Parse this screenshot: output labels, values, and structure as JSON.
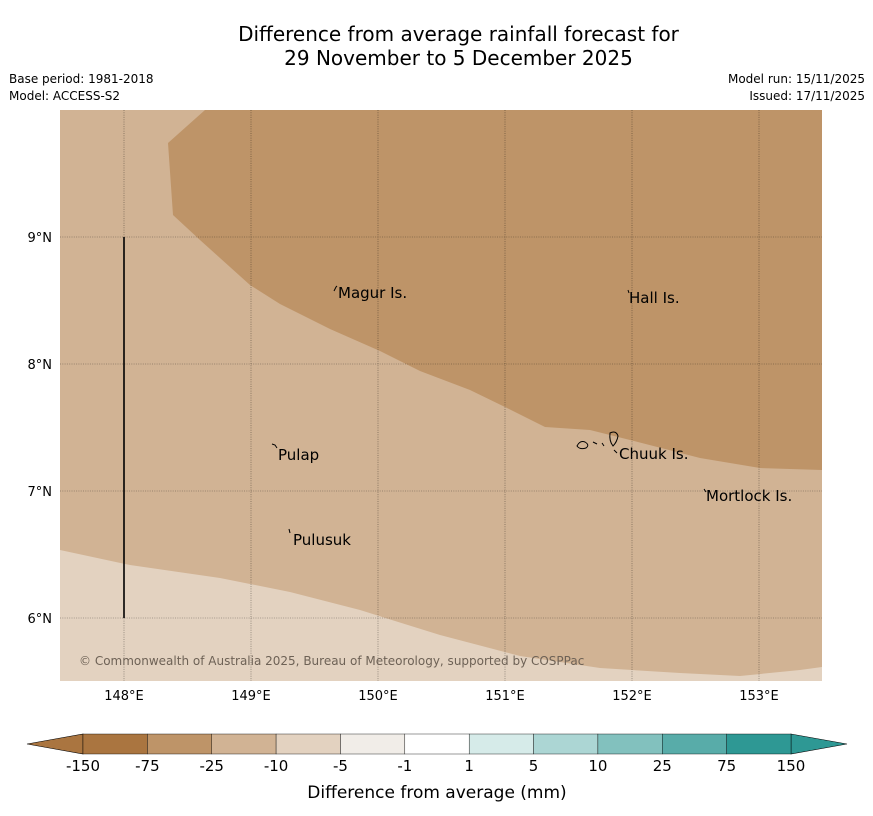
{
  "title": {
    "line1": "Difference from average rainfall forecast for",
    "line2": "29 November to 5 December 2025"
  },
  "meta": {
    "base_period": "Base period: 1981-2018",
    "model": "Model: ACCESS-S2",
    "model_run": "Model run: 15/11/2025",
    "issued": "Issued: 17/11/2025"
  },
  "map": {
    "lat_ticks": [
      "9°N",
      "8°N",
      "7°N",
      "6°N"
    ],
    "lon_ticks": [
      "148°E",
      "149°E",
      "150°E",
      "151°E",
      "152°E",
      "153°E"
    ],
    "places": [
      {
        "name": "Magur Is."
      },
      {
        "name": "Hall Is."
      },
      {
        "name": "Pulap"
      },
      {
        "name": "Chuuk Is."
      },
      {
        "name": "Mortlock Is."
      },
      {
        "name": "Pulusuk"
      }
    ],
    "copyright": "© Commonwealth of Australia 2025, Bureau of Meteorology, supported by COSPPac"
  },
  "legend": {
    "colors": [
      "#aa7540",
      "#be9468",
      "#d1b394",
      "#e3d2c0",
      "#f1ede8",
      "#ffffff",
      "#d6ebe9",
      "#acd6d4",
      "#82c1be",
      "#58aca9",
      "#2e9894"
    ],
    "over_under": {
      "low": "#aa7540",
      "high": "#2e9894"
    },
    "ticks": [
      "-150",
      "-75",
      "-25",
      "-10",
      "-5",
      "-1",
      "1",
      "5",
      "10",
      "25",
      "75",
      "150"
    ],
    "label": "Difference from average (mm)"
  }
}
